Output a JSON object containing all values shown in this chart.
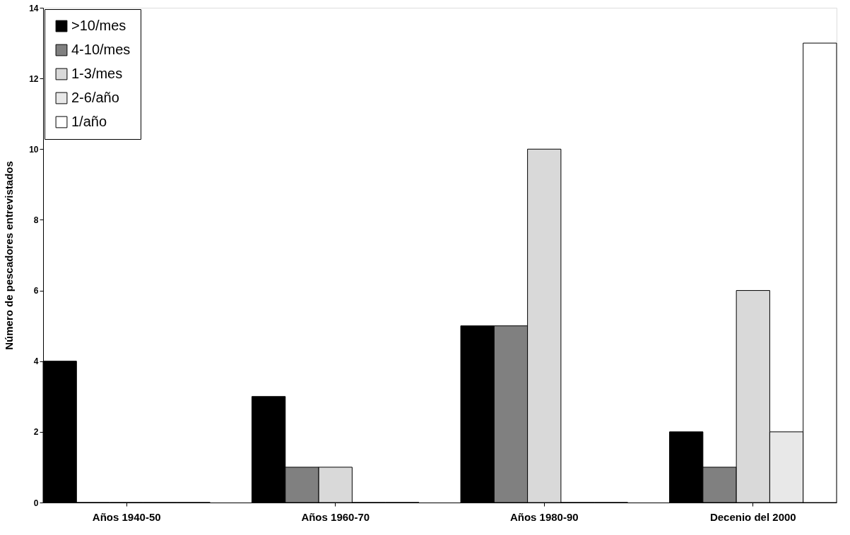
{
  "chart_data": {
    "type": "bar",
    "ylabel": "Número de pescadores entrevistados",
    "categories": [
      "Años 1940-50",
      "Años 1960-70",
      "Años 1980-90",
      "Decenio del 2000"
    ],
    "series": [
      {
        "name": ">10/mes",
        "color": "#000000",
        "values": [
          4,
          3,
          5,
          2
        ]
      },
      {
        "name": "4-10/mes",
        "color": "#808080",
        "values": [
          0,
          1,
          5,
          1
        ]
      },
      {
        "name": "1-3/mes",
        "color": "#d9d9d9",
        "values": [
          0,
          1,
          10,
          6
        ]
      },
      {
        "name": "2-6/año",
        "color": "#e8e8e8",
        "values": [
          0,
          0,
          0,
          2
        ]
      },
      {
        "name": "1/año",
        "color": "#ffffff",
        "values": [
          0,
          0,
          0,
          13
        ]
      }
    ],
    "ylim": [
      0,
      14
    ],
    "yticks": [
      0,
      2,
      4,
      6,
      8,
      10,
      12,
      14
    ],
    "grid": false,
    "legend": "top left"
  }
}
